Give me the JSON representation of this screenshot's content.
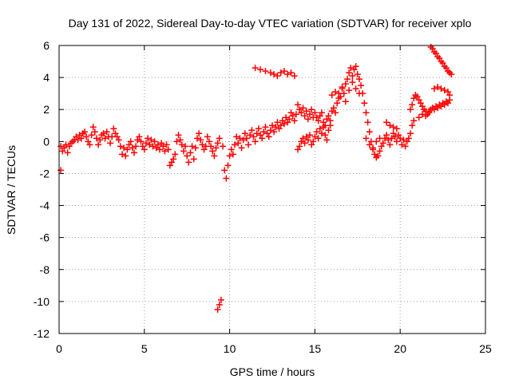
{
  "chart_data": {
    "type": "scatter",
    "title": "Day 131 of 2022, Sidereal Day-to-day VTEC variation (SDTVAR) for receiver xplo",
    "xlabel": "GPS time / hours",
    "ylabel": "SDTVAR / TECUs",
    "xlim": [
      0,
      25
    ],
    "ylim": [
      -12,
      6
    ],
    "xticks": [
      0,
      5,
      10,
      15,
      20,
      25
    ],
    "yticks": [
      -12,
      -10,
      -8,
      -6,
      -4,
      -2,
      0,
      2,
      4,
      6
    ],
    "grid": true,
    "marker": "+",
    "color": "#ff0000",
    "series": [
      {
        "name": "SDTVAR",
        "points": [
          [
            0.1,
            -1.8
          ],
          [
            0.1,
            -0.3
          ],
          [
            0.2,
            -0.6
          ],
          [
            0.3,
            -0.4
          ],
          [
            0.4,
            -0.2
          ],
          [
            0.5,
            -0.7
          ],
          [
            0.6,
            -0.3
          ],
          [
            0.7,
            -0.1
          ],
          [
            0.8,
            0.0
          ],
          [
            0.9,
            0.1
          ],
          [
            1.0,
            0.3
          ],
          [
            1.1,
            0.1
          ],
          [
            1.2,
            0.4
          ],
          [
            1.3,
            0.2
          ],
          [
            1.4,
            0.5
          ],
          [
            1.5,
            0.6
          ],
          [
            1.6,
            0.3
          ],
          [
            1.7,
            0.0
          ],
          [
            1.8,
            -0.2
          ],
          [
            1.9,
            0.4
          ],
          [
            2.0,
            0.9
          ],
          [
            2.1,
            0.6
          ],
          [
            2.2,
            0.2
          ],
          [
            2.3,
            -0.2
          ],
          [
            2.4,
            0.1
          ],
          [
            2.5,
            0.4
          ],
          [
            2.6,
            0.5
          ],
          [
            2.7,
            0.2
          ],
          [
            2.8,
            0.6
          ],
          [
            2.9,
            0.3
          ],
          [
            3.0,
            -0.1
          ],
          [
            3.1,
            0.3
          ],
          [
            3.2,
            0.8
          ],
          [
            3.3,
            0.5
          ],
          [
            3.4,
            0.3
          ],
          [
            3.5,
            0.1
          ],
          [
            3.6,
            -0.3
          ],
          [
            3.7,
            -0.8
          ],
          [
            3.8,
            -0.4
          ],
          [
            3.9,
            -0.9
          ],
          [
            4.0,
            -0.5
          ],
          [
            4.1,
            -0.2
          ],
          [
            4.2,
            0.0
          ],
          [
            4.3,
            -0.4
          ],
          [
            4.4,
            -0.7
          ],
          [
            4.5,
            -0.3
          ],
          [
            4.6,
            0.1
          ],
          [
            4.7,
            0.3
          ],
          [
            4.8,
            0.0
          ],
          [
            4.9,
            -0.3
          ],
          [
            5.0,
            -0.5
          ],
          [
            5.1,
            -0.1
          ],
          [
            5.2,
            0.2
          ],
          [
            5.3,
            -0.2
          ],
          [
            5.4,
            0.1
          ],
          [
            5.5,
            -0.3
          ],
          [
            5.6,
            0.0
          ],
          [
            5.7,
            -0.4
          ],
          [
            5.8,
            -0.2
          ],
          [
            5.9,
            -0.5
          ],
          [
            6.0,
            -0.1
          ],
          [
            6.1,
            -0.3
          ],
          [
            6.2,
            -0.6
          ],
          [
            6.3,
            -0.2
          ],
          [
            6.4,
            -0.5
          ],
          [
            6.5,
            -1.5
          ],
          [
            6.6,
            -1.3
          ],
          [
            6.7,
            -1.1
          ],
          [
            6.8,
            -0.8
          ],
          [
            6.9,
            0.0
          ],
          [
            7.0,
            0.4
          ],
          [
            7.1,
            0.1
          ],
          [
            7.2,
            -0.2
          ],
          [
            7.3,
            -0.6
          ],
          [
            7.4,
            -0.3
          ],
          [
            7.5,
            -0.9
          ],
          [
            7.6,
            -1.3
          ],
          [
            7.7,
            -0.7
          ],
          [
            7.8,
            -0.3
          ],
          [
            7.9,
            -1.1
          ],
          [
            8.0,
            -0.4
          ],
          [
            8.1,
            0.2
          ],
          [
            8.2,
            0.5
          ],
          [
            8.3,
            0.1
          ],
          [
            8.4,
            -0.2
          ],
          [
            8.5,
            -0.5
          ],
          [
            8.6,
            -0.3
          ],
          [
            8.7,
            0.3
          ],
          [
            8.8,
            0.0
          ],
          [
            8.9,
            -0.3
          ],
          [
            9.0,
            -0.6
          ],
          [
            9.1,
            -0.9
          ],
          [
            9.2,
            -0.4
          ],
          [
            9.3,
            -0.1
          ],
          [
            9.4,
            0.2
          ],
          [
            9.3,
            -10.5
          ],
          [
            9.4,
            -10.2
          ],
          [
            9.5,
            -9.9
          ],
          [
            9.6,
            -0.3
          ],
          [
            9.7,
            -1.8
          ],
          [
            9.8,
            -2.3
          ],
          [
            9.9,
            -1.5
          ],
          [
            10.0,
            -0.9
          ],
          [
            10.1,
            -0.5
          ],
          [
            10.2,
            -0.8
          ],
          [
            10.3,
            -0.2
          ],
          [
            10.4,
            0.3
          ],
          [
            10.5,
            -0.1
          ],
          [
            10.6,
            0.2
          ],
          [
            10.7,
            -0.4
          ],
          [
            10.8,
            0.1
          ],
          [
            10.9,
            0.5
          ],
          [
            11.0,
            0.2
          ],
          [
            11.1,
            -0.2
          ],
          [
            11.2,
            0.4
          ],
          [
            11.3,
            0.7
          ],
          [
            11.4,
            0.3
          ],
          [
            11.5,
            0.0
          ],
          [
            11.6,
            0.5
          ],
          [
            11.7,
            0.8
          ],
          [
            11.8,
            0.4
          ],
          [
            11.9,
            0.2
          ],
          [
            12.0,
            0.6
          ],
          [
            12.1,
            0.9
          ],
          [
            12.2,
            0.5
          ],
          [
            12.3,
            0.3
          ],
          [
            12.4,
            0.7
          ],
          [
            12.5,
            1.0
          ],
          [
            12.6,
            0.6
          ],
          [
            12.7,
            0.9
          ],
          [
            12.8,
            1.2
          ],
          [
            12.9,
            0.8
          ],
          [
            13.0,
            1.0
          ],
          [
            13.1,
            1.3
          ],
          [
            13.2,
            1.1
          ],
          [
            13.3,
            1.5
          ],
          [
            13.4,
            1.2
          ],
          [
            13.5,
            1.4
          ],
          [
            13.6,
            1.8
          ],
          [
            13.7,
            1.6
          ],
          [
            13.8,
            1.3
          ],
          [
            13.9,
            1.7
          ],
          [
            11.5,
            4.6
          ],
          [
            11.8,
            4.5
          ],
          [
            12.1,
            4.4
          ],
          [
            12.4,
            4.3
          ],
          [
            12.6,
            4.2
          ],
          [
            12.8,
            4.1
          ],
          [
            13.0,
            4.3
          ],
          [
            13.2,
            4.4
          ],
          [
            13.4,
            4.2
          ],
          [
            13.6,
            4.3
          ],
          [
            13.8,
            4.1
          ],
          [
            14.0,
            2.3
          ],
          [
            14.1,
            2.0
          ],
          [
            14.2,
            1.8
          ],
          [
            14.3,
            2.1
          ],
          [
            14.4,
            1.6
          ],
          [
            14.5,
            1.9
          ],
          [
            14.6,
            1.4
          ],
          [
            14.7,
            1.7
          ],
          [
            14.8,
            2.0
          ],
          [
            14.9,
            1.5
          ],
          [
            14.0,
            -0.5
          ],
          [
            14.1,
            -0.3
          ],
          [
            14.2,
            0.0
          ],
          [
            14.3,
            0.2
          ],
          [
            14.4,
            -0.1
          ],
          [
            14.5,
            0.3
          ],
          [
            14.6,
            0.1
          ],
          [
            14.7,
            0.4
          ],
          [
            14.8,
            -0.2
          ],
          [
            14.9,
            0.0
          ],
          [
            15.0,
            1.8
          ],
          [
            15.1,
            1.5
          ],
          [
            15.2,
            1.3
          ],
          [
            15.3,
            1.6
          ],
          [
            15.4,
            1.8
          ],
          [
            15.5,
            1.2
          ],
          [
            15.6,
            1.0
          ],
          [
            15.7,
            1.4
          ],
          [
            15.8,
            1.6
          ],
          [
            15.9,
            1.3
          ],
          [
            15.0,
            0.3
          ],
          [
            15.1,
            0.6
          ],
          [
            15.2,
            0.2
          ],
          [
            15.3,
            0.8
          ],
          [
            15.4,
            0.5
          ],
          [
            15.5,
            0.9
          ],
          [
            15.6,
            0.4
          ],
          [
            15.7,
            0.1
          ],
          [
            15.8,
            0.7
          ],
          [
            15.9,
            1.0
          ],
          [
            16.0,
            1.9
          ],
          [
            16.1,
            2.1
          ],
          [
            16.2,
            1.8
          ],
          [
            16.3,
            2.4
          ],
          [
            16.4,
            3.0
          ],
          [
            16.5,
            2.8
          ],
          [
            16.6,
            3.3
          ],
          [
            16.7,
            3.0
          ],
          [
            16.8,
            3.6
          ],
          [
            16.9,
            3.9
          ],
          [
            16.0,
            2.9
          ],
          [
            16.2,
            3.1
          ],
          [
            16.4,
            2.7
          ],
          [
            16.6,
            3.4
          ],
          [
            16.8,
            2.5
          ],
          [
            17.0,
            4.3
          ],
          [
            17.1,
            4.6
          ],
          [
            17.2,
            4.1
          ],
          [
            17.3,
            4.5
          ],
          [
            17.4,
            4.7
          ],
          [
            17.5,
            4.2
          ],
          [
            17.6,
            3.9
          ],
          [
            17.7,
            3.5
          ],
          [
            17.8,
            3.0
          ],
          [
            17.9,
            2.4
          ],
          [
            17.0,
            3.2
          ],
          [
            17.2,
            3.7
          ],
          [
            17.4,
            3.3
          ],
          [
            17.6,
            3.0
          ],
          [
            18.0,
            1.8
          ],
          [
            18.1,
            1.2
          ],
          [
            18.2,
            0.6
          ],
          [
            18.3,
            0.0
          ],
          [
            18.4,
            -0.5
          ],
          [
            18.5,
            -0.8
          ],
          [
            18.6,
            -1.0
          ],
          [
            18.7,
            -0.9
          ],
          [
            18.8,
            -0.6
          ],
          [
            18.9,
            -0.3
          ],
          [
            18.0,
            0.2
          ],
          [
            18.2,
            -0.2
          ],
          [
            18.4,
            -0.4
          ],
          [
            18.6,
            0.0
          ],
          [
            18.8,
            0.2
          ],
          [
            19.0,
            -0.1
          ],
          [
            19.1,
            0.2
          ],
          [
            19.2,
            0.4
          ],
          [
            19.3,
            0.1
          ],
          [
            19.4,
            -0.2
          ],
          [
            19.5,
            0.2
          ],
          [
            19.6,
            0.5
          ],
          [
            19.7,
            0.3
          ],
          [
            19.8,
            0.0
          ],
          [
            19.9,
            0.4
          ],
          [
            19.2,
            1.2
          ],
          [
            19.4,
            1.0
          ],
          [
            19.6,
            0.9
          ],
          [
            19.8,
            0.8
          ],
          [
            20.0,
            0.2
          ],
          [
            20.1,
            -0.2
          ],
          [
            20.2,
            0.1
          ],
          [
            20.3,
            -0.3
          ],
          [
            20.4,
            0.0
          ],
          [
            20.5,
            0.2
          ],
          [
            20.6,
            0.5
          ],
          [
            20.7,
            1.0
          ],
          [
            20.8,
            1.3
          ],
          [
            20.6,
            2.0
          ],
          [
            20.7,
            2.3
          ],
          [
            20.8,
            2.7
          ],
          [
            20.9,
            2.9
          ],
          [
            21.0,
            2.8
          ],
          [
            21.1,
            2.6
          ],
          [
            21.2,
            2.4
          ],
          [
            21.3,
            2.2
          ],
          [
            21.4,
            2.0
          ],
          [
            21.5,
            1.9
          ],
          [
            21.6,
            1.7
          ],
          [
            21.7,
            1.8
          ],
          [
            21.8,
            2.0
          ],
          [
            21.9,
            2.1
          ],
          [
            21.1,
            1.5
          ],
          [
            21.3,
            1.7
          ],
          [
            21.5,
            1.6
          ],
          [
            21.7,
            1.9
          ],
          [
            22.0,
            2.0
          ],
          [
            22.1,
            2.2
          ],
          [
            22.2,
            2.1
          ],
          [
            22.3,
            2.3
          ],
          [
            22.4,
            2.2
          ],
          [
            22.5,
            2.4
          ],
          [
            22.6,
            2.3
          ],
          [
            22.7,
            2.5
          ],
          [
            22.8,
            2.4
          ],
          [
            22.9,
            2.6
          ],
          [
            22.0,
            3.3
          ],
          [
            22.2,
            3.4
          ],
          [
            22.4,
            3.3
          ],
          [
            22.6,
            3.2
          ],
          [
            22.8,
            3.1
          ],
          [
            22.9,
            2.9
          ],
          [
            21.8,
            5.9
          ],
          [
            21.9,
            5.8
          ],
          [
            22.0,
            5.6
          ],
          [
            22.1,
            5.5
          ],
          [
            22.2,
            5.3
          ],
          [
            22.3,
            5.2
          ],
          [
            22.4,
            5.0
          ],
          [
            22.5,
            4.9
          ],
          [
            22.6,
            4.7
          ],
          [
            22.7,
            4.6
          ],
          [
            22.8,
            4.4
          ],
          [
            22.9,
            4.3
          ],
          [
            23.0,
            4.2
          ]
        ]
      }
    ]
  }
}
